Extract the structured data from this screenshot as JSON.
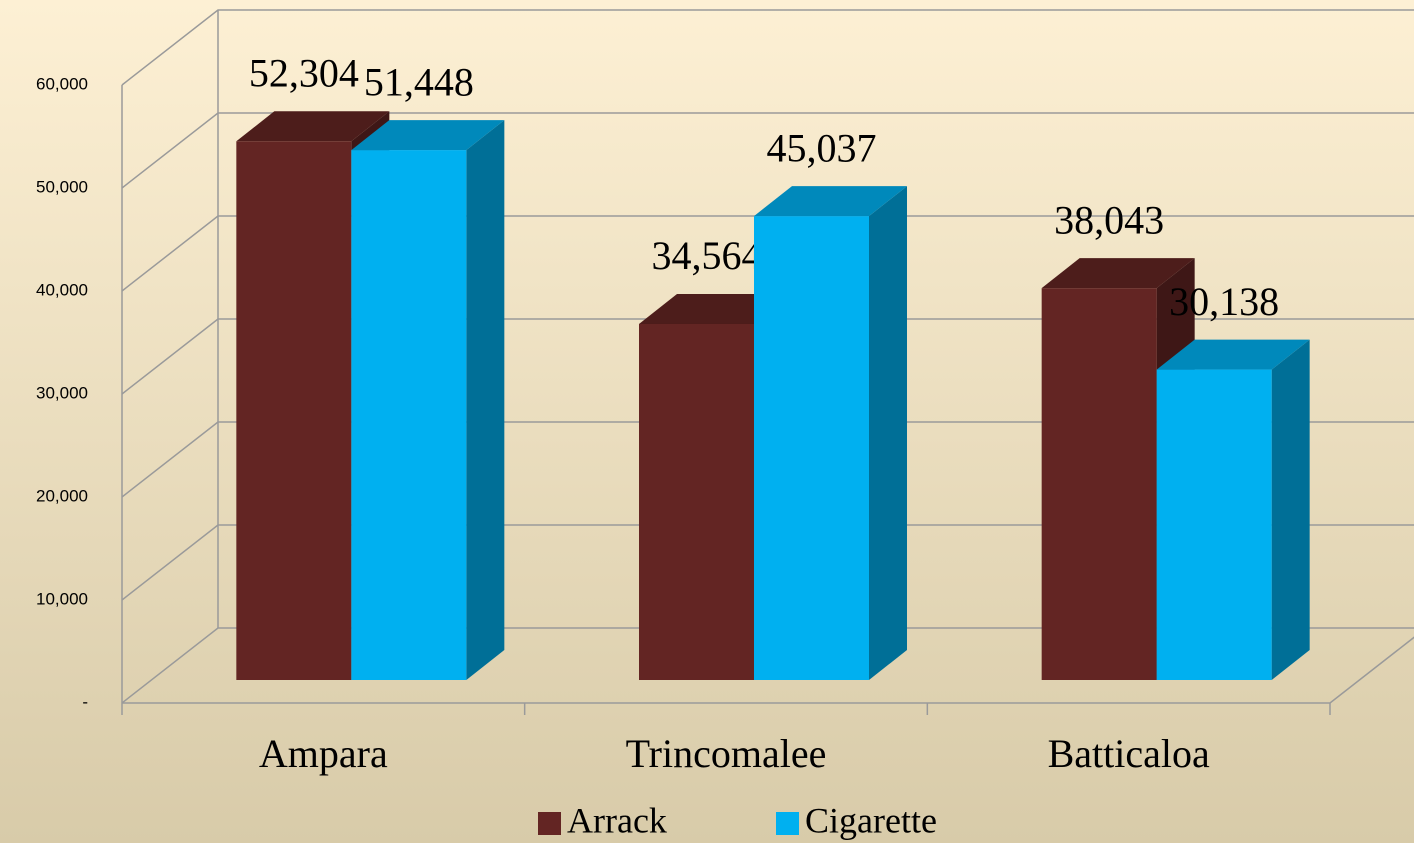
{
  "chart_data": {
    "type": "bar3d",
    "categories": [
      "Ampara",
      "Trincomalee",
      "Batticaloa"
    ],
    "series": [
      {
        "name": "Arrack",
        "color": "#632523",
        "values": [
          52304,
          34564,
          38043
        ],
        "value_labels": [
          "52,304",
          "34,564",
          "38,043"
        ]
      },
      {
        "name": "Cigarette",
        "color": "#00b0f0",
        "values": [
          51448,
          45037,
          30138
        ],
        "value_labels": [
          "51,448",
          "45,037",
          "30,138"
        ]
      }
    ],
    "ylim": [
      0,
      60000
    ],
    "yticks": [
      {
        "value": 0,
        "label": "-"
      },
      {
        "value": 10000,
        "label": "10,000"
      },
      {
        "value": 20000,
        "label": "20,000"
      },
      {
        "value": 30000,
        "label": "30,000"
      },
      {
        "value": 40000,
        "label": "40,000"
      },
      {
        "value": 50000,
        "label": "50,000"
      },
      {
        "value": 60000,
        "label": "60,000"
      }
    ],
    "grid": true,
    "legend": "bottom"
  }
}
